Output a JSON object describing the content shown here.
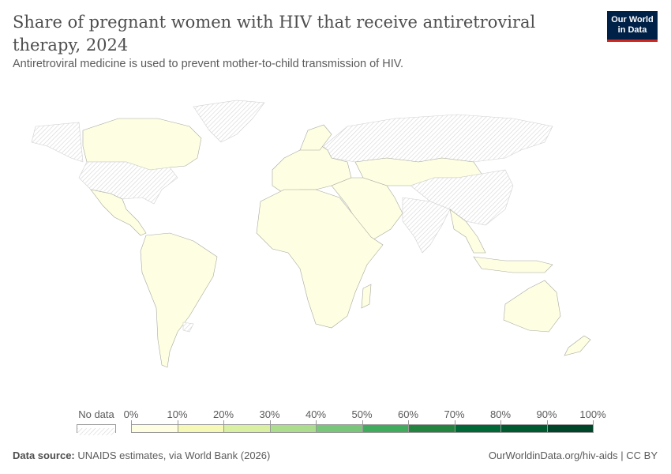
{
  "header": {
    "title": "Share of pregnant women with HIV that receive antiretroviral therapy, 2024",
    "subtitle": "Antiretroviral medicine is used to prevent mother-to-child transmission of HIV.",
    "logo_line1": "Our World",
    "logo_line2": "in Data"
  },
  "legend": {
    "no_data_label": "No data",
    "labels": [
      "0%",
      "10%",
      "20%",
      "30%",
      "40%",
      "50%",
      "60%",
      "70%",
      "80%",
      "90%",
      "100%"
    ],
    "colors": [
      "#fefee3",
      "#f5f9b5",
      "#d9efa1",
      "#acdc8e",
      "#79c67b",
      "#41ab5d",
      "#22843f",
      "#006837",
      "#005a30",
      "#004529"
    ],
    "no_data_color": "#e6e6e6"
  },
  "footer": {
    "source_label": "Data source:",
    "source_text": "UNAIDS estimates, via World Bank (2026)",
    "url": "OurWorldinData.org/hiv-aids",
    "license": "CC BY"
  }
}
